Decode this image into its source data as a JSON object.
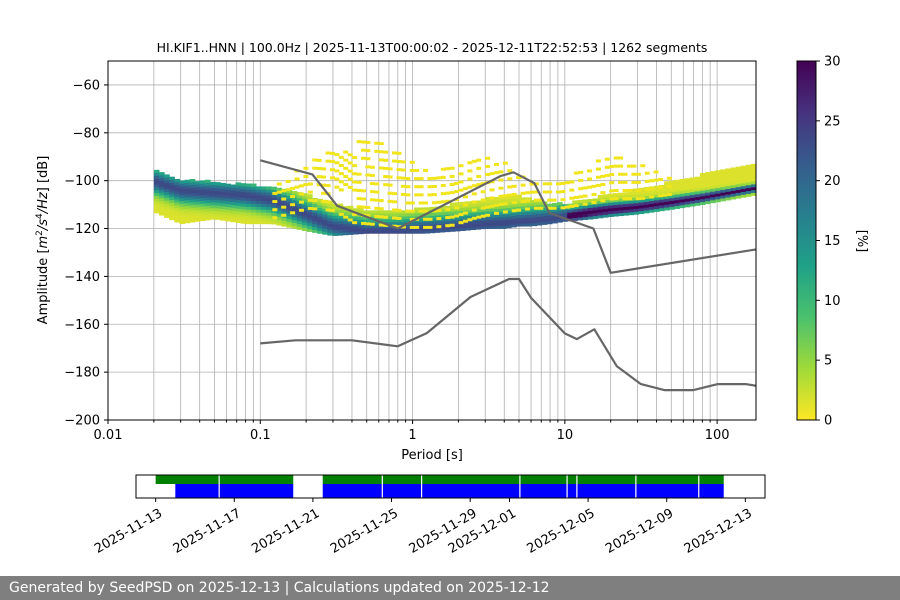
{
  "chart_data": [
    {
      "type": "heatmap",
      "title": "HI.KIF1..HNN | 100.0Hz | 2025-11-13T00:00:02 - 2025-12-11T22:52:53 | 1262 segments",
      "xlabel": "Period [s]",
      "ylabel": "Amplitude [$m^2/s^4/Hz$] [dB]",
      "xscale": "log",
      "xlim": [
        0.01,
        180
      ],
      "ylim": [
        -200,
        -50
      ],
      "x_ticks": [
        0.01,
        0.1,
        1,
        10,
        100
      ],
      "x_tick_labels": [
        "0.01",
        "0.1",
        "1",
        "10",
        "100"
      ],
      "y_ticks": [
        -200,
        -180,
        -160,
        -140,
        -120,
        -100,
        -80,
        -60
      ],
      "y_tick_labels": [
        "−200",
        "−180",
        "−160",
        "−140",
        "−120",
        "−100",
        "−80",
        "−60"
      ],
      "grid": true,
      "colorbar": {
        "label": "[%]",
        "range": [
          0,
          30
        ],
        "ticks": [
          0,
          5,
          10,
          15,
          20,
          25,
          30
        ],
        "tick_labels": [
          "0",
          "5",
          "10",
          "15",
          "20",
          "25",
          "30"
        ],
        "colormap": "viridis_r",
        "stops": [
          "#fde725",
          "#a0da39",
          "#4ac16d",
          "#1fa187",
          "#277f8e",
          "#365c8d",
          "#46327e",
          "#440154"
        ]
      },
      "psd_mode_curve": {
        "name": "mode",
        "x": [
          0.02,
          0.03,
          0.05,
          0.08,
          0.12,
          0.2,
          0.3,
          0.5,
          0.8,
          1.2,
          2,
          3,
          4,
          5,
          6,
          8,
          10,
          15,
          20,
          30,
          50,
          80,
          120,
          180
        ],
        "y": [
          -100,
          -104,
          -105,
          -106,
          -108,
          -114,
          -119,
          -121,
          -121,
          -120,
          -119,
          -118,
          -117.5,
          -117,
          -116.5,
          -116,
          -115,
          -113,
          -112,
          -111,
          -109,
          -107,
          -105,
          -103
        ]
      },
      "psd_band": {
        "name": "percentage spread",
        "x": [
          0.02,
          0.03,
          0.05,
          0.08,
          0.12,
          0.2,
          0.3,
          0.5,
          0.8,
          1.2,
          2,
          3,
          4,
          5,
          6,
          8,
          10,
          15,
          20,
          30,
          50,
          80,
          120,
          180
        ],
        "upper": [
          -96,
          -100,
          -101,
          -102,
          -103,
          -106,
          -110,
          -113,
          -113,
          -112,
          -110,
          -108,
          -107,
          -107,
          -108,
          -110,
          -110,
          -108,
          -106,
          -104,
          -101,
          -98,
          -95,
          -93
        ],
        "lower": [
          -113,
          -118,
          -116,
          -118,
          -118,
          -121,
          -123,
          -122,
          -122,
          -122,
          -121,
          -120,
          -120,
          -119,
          -119,
          -118,
          -117,
          -116,
          -115,
          -114,
          -112,
          -110,
          -108,
          -106
        ]
      },
      "psd_spikes": {
        "name": "outliers",
        "x": [
          0.12,
          0.2,
          0.3,
          0.4,
          0.6,
          0.9,
          1.3,
          1.8,
          2.5,
          3.5,
          4.5,
          6,
          9,
          14,
          20,
          30,
          50
        ],
        "top": [
          -101,
          -93,
          -85,
          -81,
          -84,
          -90,
          -98,
          -93,
          -89,
          -91,
          -95,
          -99,
          -101,
          -94,
          -89,
          -93,
          -100
        ],
        "bottom": [
          -116,
          -112,
          -113,
          -118,
          -119,
          -120,
          -120,
          -119,
          -116,
          -114,
          -113,
          -112,
          -112,
          -110,
          -108,
          -108,
          -106
        ]
      },
      "series": [
        {
          "name": "NHNM",
          "x": [
            0.1,
            0.22,
            0.32,
            0.8,
            3.8,
            4.6,
            6.3,
            7.9,
            15.4,
            20,
            180
          ],
          "y": [
            -91.5,
            -97.4,
            -110.5,
            -120,
            -98,
            -96.5,
            -101,
            -113.5,
            -120,
            -138.5,
            -128.7
          ]
        },
        {
          "name": "NLNM",
          "x": [
            0.1,
            0.17,
            0.4,
            0.8,
            1.24,
            2.4,
            4.3,
            5,
            6,
            10,
            12,
            15.6,
            21.9,
            31.6,
            45,
            70,
            101,
            154,
            180
          ],
          "y": [
            -168,
            -166.7,
            -166.7,
            -169.2,
            -163.7,
            -148.6,
            -141.1,
            -141.1,
            -149,
            -163.8,
            -166.2,
            -162.1,
            -177.5,
            -185,
            -187.5,
            -187.5,
            -185,
            -185,
            -185.7
          ]
        }
      ]
    },
    {
      "type": "timeline",
      "x_range": [
        "2025-11-12",
        "2025-12-14"
      ],
      "x_ticks": [
        "2025-11-13",
        "2025-11-17",
        "2025-11-21",
        "2025-11-25",
        "2025-11-29",
        "2025-12-01",
        "2025-12-05",
        "2025-12-09",
        "2025-12-13"
      ],
      "available_data": [
        [
          "2025-11-13",
          "2025-11-20"
        ],
        [
          "2025-11-21.5",
          "2025-12-11.9"
        ]
      ],
      "available_color": "#008000",
      "used_data": [
        [
          "2025-11-14",
          "2025-11-20"
        ],
        [
          "2025-11-21.5",
          "2025-12-11.9"
        ]
      ],
      "used_color": "#0000ff",
      "gaps": [
        "2025-11-16.2",
        "2025-11-24.5",
        "2025-11-26.5",
        "2025-12-01.5",
        "2025-12-03.9",
        "2025-12-04.4",
        "2025-12-07.4",
        "2025-12-10.6"
      ]
    }
  ],
  "footer": {
    "text": "Generated by SeedPSD on 2025-12-13 | Calculations updated on 2025-12-12",
    "background": "#7f7f7f"
  },
  "colors": {
    "model_line": "#666666",
    "grid": "#b0b0b0"
  }
}
